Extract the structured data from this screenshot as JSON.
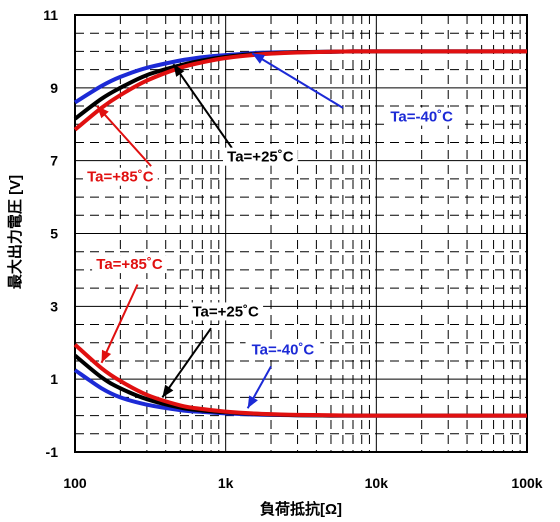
{
  "chart_data": {
    "type": "line",
    "title": "",
    "xlabel": "負荷抵抗[Ω]",
    "ylabel": "最大出力電圧 [V]",
    "x_scale": "log",
    "xlim": [
      100,
      100000
    ],
    "ylim": [
      -1,
      11
    ],
    "grid": true,
    "x_ticks": [
      {
        "value": 100,
        "label": "100"
      },
      {
        "value": 1000,
        "label": "1k"
      },
      {
        "value": 10000,
        "label": "10k"
      },
      {
        "value": 100000,
        "label": "100k"
      }
    ],
    "y_ticks": [
      {
        "value": -1,
        "label": "-1"
      },
      {
        "value": 1,
        "label": "1"
      },
      {
        "value": 3,
        "label": "3"
      },
      {
        "value": 5,
        "label": "5"
      },
      {
        "value": 7,
        "label": "7"
      },
      {
        "value": 9,
        "label": "9"
      },
      {
        "value": 11,
        "label": "11"
      }
    ],
    "x": [
      100,
      150,
      200,
      300,
      500,
      700,
      1000,
      1500,
      2000,
      3000,
      5000,
      7000,
      10000,
      20000,
      50000,
      100000
    ],
    "series": [
      {
        "name": "Ta=-40˚C",
        "group": "high",
        "color": "#1c2ad6",
        "values": [
          8.6,
          9.05,
          9.3,
          9.55,
          9.75,
          9.84,
          9.9,
          9.95,
          9.97,
          9.98,
          9.99,
          10.0,
          10.0,
          10.0,
          10.0,
          10.0
        ]
      },
      {
        "name": "Ta=+25˚C",
        "group": "high",
        "color": "#000000",
        "values": [
          8.15,
          8.7,
          9.0,
          9.35,
          9.62,
          9.75,
          9.85,
          9.92,
          9.95,
          9.98,
          9.99,
          10.0,
          10.0,
          10.0,
          10.0,
          10.0
        ]
      },
      {
        "name": "Ta=+85˚C",
        "group": "high",
        "color": "#e01010",
        "values": [
          7.85,
          8.45,
          8.8,
          9.2,
          9.55,
          9.7,
          9.82,
          9.9,
          9.94,
          9.97,
          9.99,
          10.0,
          10.0,
          10.0,
          10.0,
          10.0
        ]
      },
      {
        "name": "Ta=-40˚C",
        "group": "low",
        "color": "#1c2ad6",
        "values": [
          1.25,
          0.75,
          0.5,
          0.3,
          0.15,
          0.1,
          0.06,
          0.03,
          0.02,
          0.01,
          0.0,
          0.0,
          0.0,
          0.0,
          0.0,
          0.0
        ]
      },
      {
        "name": "Ta=+25˚C",
        "group": "low",
        "color": "#000000",
        "values": [
          1.65,
          1.05,
          0.75,
          0.45,
          0.22,
          0.14,
          0.09,
          0.05,
          0.03,
          0.01,
          0.0,
          0.0,
          0.0,
          0.0,
          0.0,
          0.0
        ]
      },
      {
        "name": "Ta=+85˚C",
        "group": "low",
        "color": "#e01010",
        "values": [
          1.95,
          1.3,
          0.95,
          0.57,
          0.28,
          0.18,
          0.11,
          0.06,
          0.04,
          0.02,
          0.01,
          0.0,
          0.0,
          0.0,
          0.0,
          0.0
        ]
      }
    ],
    "annotations": [
      {
        "text": "Ta=-40˚C",
        "color": "#1c2ad6",
        "text_at": [
          20000,
          8.1
        ],
        "arrow_to": [
          1500,
          9.95
        ],
        "arrow_from": [
          6000,
          8.45
        ]
      },
      {
        "text": "Ta=+25˚C",
        "color": "#000000",
        "text_at": [
          1700,
          7.0
        ],
        "arrow_to": [
          450,
          9.65
        ],
        "arrow_from": [
          1100,
          7.35
        ]
      },
      {
        "text": "Ta=+85˚C",
        "color": "#e01010",
        "text_at": [
          200,
          6.45
        ],
        "arrow_to": [
          140,
          8.5
        ],
        "arrow_from": [
          320,
          6.85
        ]
      },
      {
        "text": "Ta=+85˚C",
        "color": "#e01010",
        "text_at": [
          230,
          4.05
        ],
        "arrow_to": [
          150,
          1.45
        ],
        "arrow_from": [
          260,
          3.6
        ]
      },
      {
        "text": "Ta=+25˚C",
        "color": "#000000",
        "text_at": [
          1000,
          2.75
        ],
        "arrow_to": [
          380,
          0.5
        ],
        "arrow_from": [
          800,
          2.4
        ]
      },
      {
        "text": "Ta=-40˚C",
        "color": "#1c2ad6",
        "text_at": [
          2400,
          1.7
        ],
        "arrow_to": [
          1400,
          0.2
        ],
        "arrow_from": [
          2000,
          1.35
        ]
      }
    ]
  }
}
